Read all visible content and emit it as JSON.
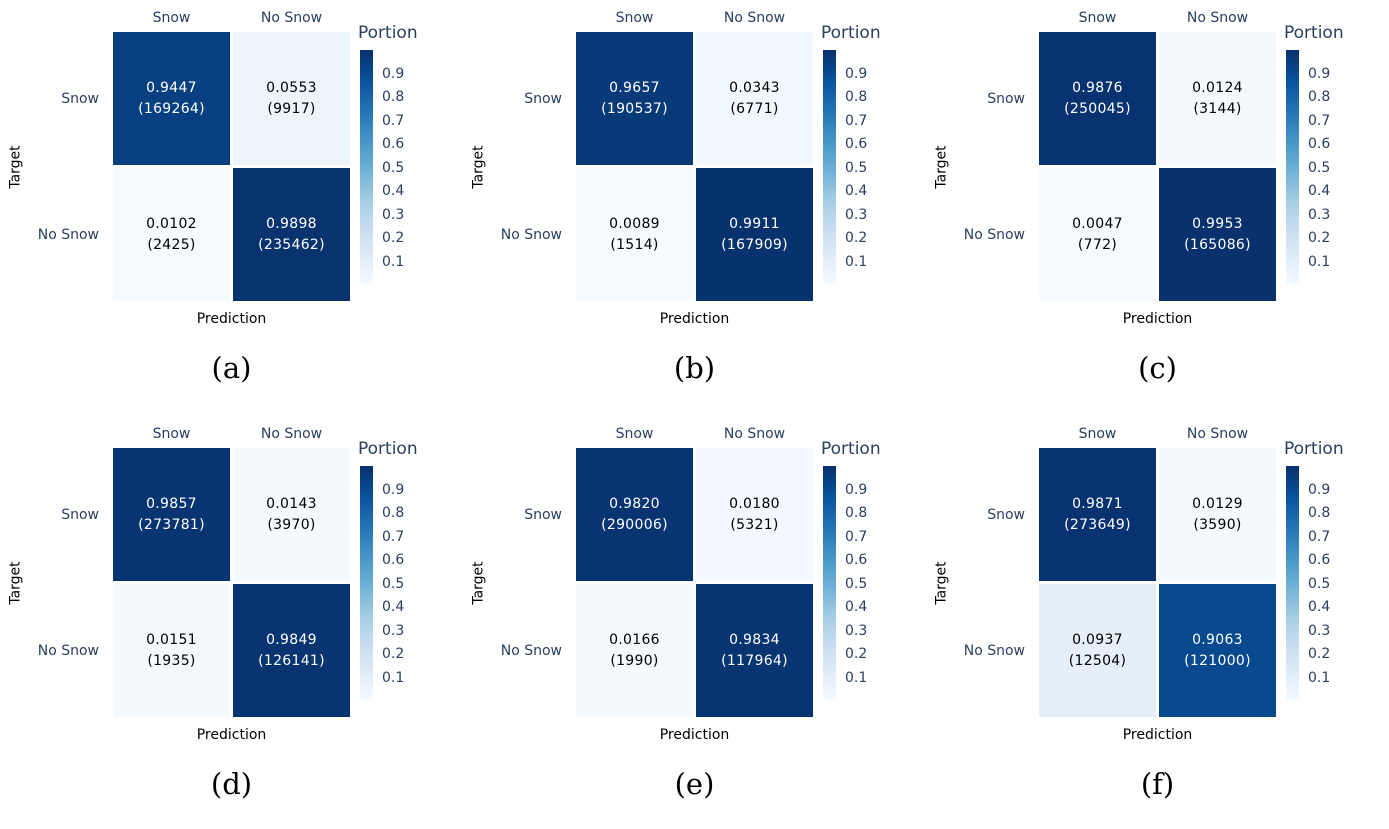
{
  "palette": {
    "label_color": "#2a3f5f",
    "axis_title_color": "#000000",
    "caption_color": "#000000",
    "cell_gap_color": "#ffffff",
    "colormap_name": "Blues",
    "colorbar_stops": [
      "#08306B",
      "#08519C",
      "#2171B5",
      "#4292C6",
      "#6BAED6",
      "#9ECAE1",
      "#C6DBEF",
      "#DEEBF7",
      "#F7FBFF"
    ]
  },
  "chart_data": [
    {
      "type": "heatmap",
      "panel": "a",
      "caption": "(a)",
      "x_categories": [
        "Snow",
        "No Snow"
      ],
      "y_categories": [
        "Snow",
        "No Snow"
      ],
      "xlabel": "Prediction",
      "ylabel": "Target",
      "zlim": [
        0,
        1
      ],
      "colorbar": {
        "title": "Portion",
        "ticks": [
          "0.9",
          "0.8",
          "0.7",
          "0.6",
          "0.5",
          "0.4",
          "0.3",
          "0.2",
          "0.1"
        ]
      },
      "cells": [
        [
          {
            "value": 0.9447,
            "count": 169264,
            "portion_label": "0.9447",
            "count_label": "(169264)",
            "bg": "#083F81",
            "fg": "#FFFFFF"
          },
          {
            "value": 0.0553,
            "count": 9917,
            "portion_label": "0.0553",
            "count_label": "(9917)",
            "bg": "#ECF4FC",
            "fg": "#000000"
          }
        ],
        [
          {
            "value": 0.0102,
            "count": 2425,
            "portion_label": "0.0102",
            "count_label": "(2425)",
            "bg": "#F5FAFE",
            "fg": "#000000"
          },
          {
            "value": 0.9898,
            "count": 235462,
            "portion_label": "0.9898",
            "count_label": "(235462)",
            "bg": "#08336F",
            "fg": "#FFFFFF"
          }
        ]
      ]
    },
    {
      "type": "heatmap",
      "panel": "b",
      "caption": "(b)",
      "x_categories": [
        "Snow",
        "No Snow"
      ],
      "y_categories": [
        "Snow",
        "No Snow"
      ],
      "xlabel": "Prediction",
      "ylabel": "Target",
      "zlim": [
        0,
        1
      ],
      "colorbar": {
        "title": "Portion",
        "ticks": [
          "0.9",
          "0.8",
          "0.7",
          "0.6",
          "0.5",
          "0.4",
          "0.3",
          "0.2",
          "0.1"
        ]
      },
      "cells": [
        [
          {
            "value": 0.9657,
            "count": 190537,
            "portion_label": "0.9657",
            "count_label": "(190537)",
            "bg": "#083978",
            "fg": "#FFFFFF"
          },
          {
            "value": 0.0343,
            "count": 6771,
            "portion_label": "0.0343",
            "count_label": "(6771)",
            "bg": "#F0F7FD",
            "fg": "#000000"
          }
        ],
        [
          {
            "value": 0.0089,
            "count": 1514,
            "portion_label": "0.0089",
            "count_label": "(1514)",
            "bg": "#F5FAFE",
            "fg": "#000000"
          },
          {
            "value": 0.9911,
            "count": 167909,
            "portion_label": "0.9911",
            "count_label": "(167909)",
            "bg": "#08326E",
            "fg": "#FFFFFF"
          }
        ]
      ]
    },
    {
      "type": "heatmap",
      "panel": "c",
      "caption": "(c)",
      "x_categories": [
        "Snow",
        "No Snow"
      ],
      "y_categories": [
        "Snow",
        "No Snow"
      ],
      "xlabel": "Prediction",
      "ylabel": "Target",
      "zlim": [
        0,
        1
      ],
      "colorbar": {
        "title": "Portion",
        "ticks": [
          "0.9",
          "0.8",
          "0.7",
          "0.6",
          "0.5",
          "0.4",
          "0.3",
          "0.2",
          "0.1"
        ]
      },
      "cells": [
        [
          {
            "value": 0.9876,
            "count": 250045,
            "portion_label": "0.9876",
            "count_label": "(250045)",
            "bg": "#083370",
            "fg": "#FFFFFF"
          },
          {
            "value": 0.0124,
            "count": 3144,
            "portion_label": "0.0124",
            "count_label": "(3144)",
            "bg": "#F5F9FE",
            "fg": "#000000"
          }
        ],
        [
          {
            "value": 0.0047,
            "count": 772,
            "portion_label": "0.0047",
            "count_label": "(772)",
            "bg": "#F6FAFF",
            "fg": "#000000"
          },
          {
            "value": 0.9953,
            "count": 165086,
            "portion_label": "0.9953",
            "count_label": "(165086)",
            "bg": "#08316D",
            "fg": "#FFFFFF"
          }
        ]
      ]
    },
    {
      "type": "heatmap",
      "panel": "d",
      "caption": "(d)",
      "x_categories": [
        "Snow",
        "No Snow"
      ],
      "y_categories": [
        "Snow",
        "No Snow"
      ],
      "xlabel": "Prediction",
      "ylabel": "Target",
      "zlim": [
        0,
        1
      ],
      "colorbar": {
        "title": "Portion",
        "ticks": [
          "0.9",
          "0.8",
          "0.7",
          "0.6",
          "0.5",
          "0.4",
          "0.3",
          "0.2",
          "0.1"
        ]
      },
      "cells": [
        [
          {
            "value": 0.9857,
            "count": 273781,
            "portion_label": "0.9857",
            "count_label": "(273781)",
            "bg": "#083471",
            "fg": "#FFFFFF"
          },
          {
            "value": 0.0143,
            "count": 3970,
            "portion_label": "0.0143",
            "count_label": "(3970)",
            "bg": "#F4F9FE",
            "fg": "#000000"
          }
        ],
        [
          {
            "value": 0.0151,
            "count": 1935,
            "portion_label": "0.0151",
            "count_label": "(1935)",
            "bg": "#F4F9FE",
            "fg": "#000000"
          },
          {
            "value": 0.9849,
            "count": 126141,
            "portion_label": "0.9849",
            "count_label": "(126141)",
            "bg": "#083471",
            "fg": "#FFFFFF"
          }
        ]
      ]
    },
    {
      "type": "heatmap",
      "panel": "e",
      "caption": "(e)",
      "x_categories": [
        "Snow",
        "No Snow"
      ],
      "y_categories": [
        "Snow",
        "No Snow"
      ],
      "xlabel": "Prediction",
      "ylabel": "Target",
      "zlim": [
        0,
        1
      ],
      "colorbar": {
        "title": "Portion",
        "ticks": [
          "0.9",
          "0.8",
          "0.7",
          "0.6",
          "0.5",
          "0.4",
          "0.3",
          "0.2",
          "0.1"
        ]
      },
      "cells": [
        [
          {
            "value": 0.982,
            "count": 290006,
            "portion_label": "0.9820",
            "count_label": "(290006)",
            "bg": "#083572",
            "fg": "#FFFFFF"
          },
          {
            "value": 0.018,
            "count": 5321,
            "portion_label": "0.0180",
            "count_label": "(5321)",
            "bg": "#F3F9FE",
            "fg": "#000000"
          }
        ],
        [
          {
            "value": 0.0166,
            "count": 1990,
            "portion_label": "0.0166",
            "count_label": "(1990)",
            "bg": "#F4F9FE",
            "fg": "#000000"
          },
          {
            "value": 0.9834,
            "count": 117964,
            "portion_label": "0.9834",
            "count_label": "(117964)",
            "bg": "#083472",
            "fg": "#FFFFFF"
          }
        ]
      ]
    },
    {
      "type": "heatmap",
      "panel": "f",
      "caption": "(f)",
      "x_categories": [
        "Snow",
        "No Snow"
      ],
      "y_categories": [
        "Snow",
        "No Snow"
      ],
      "xlabel": "Prediction",
      "ylabel": "Target",
      "zlim": [
        0,
        1
      ],
      "colorbar": {
        "title": "Portion",
        "ticks": [
          "0.9",
          "0.8",
          "0.7",
          "0.6",
          "0.5",
          "0.4",
          "0.3",
          "0.2",
          "0.1"
        ]
      },
      "cells": [
        [
          {
            "value": 0.9871,
            "count": 273649,
            "portion_label": "0.9871",
            "count_label": "(273649)",
            "bg": "#083370",
            "fg": "#FFFFFF"
          },
          {
            "value": 0.0129,
            "count": 3590,
            "portion_label": "0.0129",
            "count_label": "(3590)",
            "bg": "#F4F9FE",
            "fg": "#000000"
          }
        ],
        [
          {
            "value": 0.0937,
            "count": 12504,
            "portion_label": "0.0937",
            "count_label": "(12504)",
            "bg": "#E4EFF9",
            "fg": "#000000"
          },
          {
            "value": 0.9063,
            "count": 121000,
            "portion_label": "0.9063",
            "count_label": "(121000)",
            "bg": "#084990",
            "fg": "#FFFFFF"
          }
        ]
      ]
    }
  ]
}
